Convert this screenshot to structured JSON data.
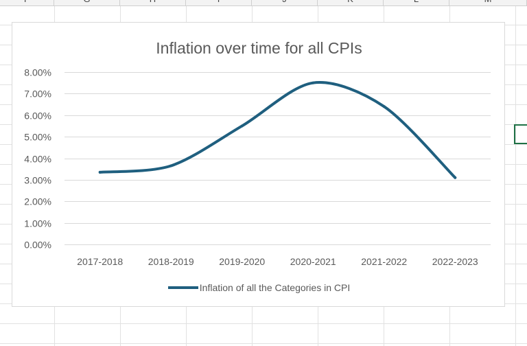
{
  "spreadsheet": {
    "column_headers": [
      "F",
      "G",
      "H",
      "I",
      "J",
      "K",
      "L",
      "M"
    ]
  },
  "chart_data": {
    "type": "line",
    "title": "Inflation over time for all CPIs",
    "xlabel": "",
    "ylabel": "",
    "categories": [
      "2017-2018",
      "2018-2019",
      "2019-2020",
      "2020-2021",
      "2021-2022",
      "2022-2023"
    ],
    "series": [
      {
        "name": "Inflation of all the Categories in CPI",
        "values": [
          0.0335,
          0.0365,
          0.055,
          0.075,
          0.064,
          0.031
        ],
        "color": "#1f5f7f"
      }
    ],
    "y_ticks": [
      "0.00%",
      "1.00%",
      "2.00%",
      "3.00%",
      "4.00%",
      "5.00%",
      "6.00%",
      "7.00%",
      "8.00%"
    ],
    "ylim": [
      0,
      0.08
    ],
    "grid": true,
    "legend_position": "bottom"
  }
}
